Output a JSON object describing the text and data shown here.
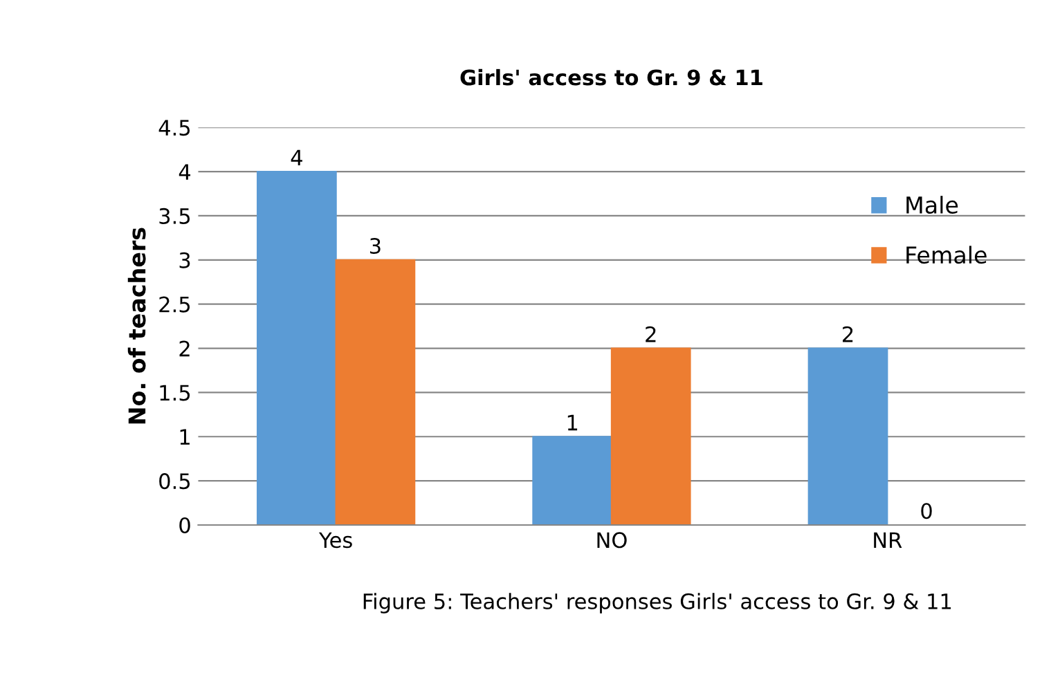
{
  "chart_data": {
    "type": "bar",
    "title": "Girls' access to Gr. 9 & 11",
    "ylabel": "No. of teachers",
    "categories": [
      "Yes",
      "NO",
      "NR"
    ],
    "series": [
      {
        "name": "Male",
        "color": "#5b9bd5",
        "values": [
          4,
          1,
          2
        ]
      },
      {
        "name": "Female",
        "color": "#ed7d31",
        "values": [
          3,
          2,
          0
        ]
      }
    ],
    "ylim": [
      0,
      4.5
    ],
    "yticks": [
      0,
      0.5,
      1,
      1.5,
      2,
      2.5,
      3,
      3.5,
      4,
      4.5
    ],
    "grid": "y",
    "legend": "top right",
    "data_labels": true,
    "annotations": [
      "Figure 5: Teachers' responses Girls' access to Gr. 9 & 11"
    ]
  }
}
